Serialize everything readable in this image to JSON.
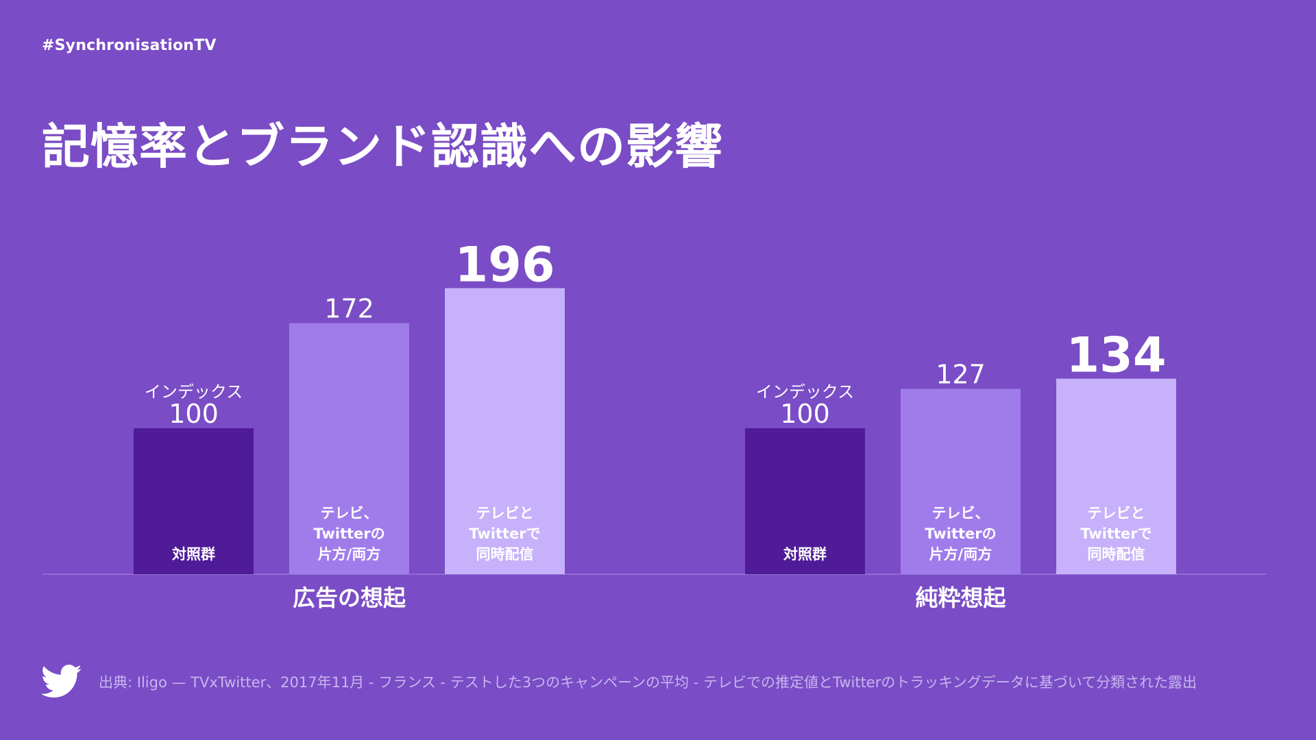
{
  "hashtag": "#SynchronisationTV",
  "title": "記憶率とブランド認識への影響",
  "source": "出典: Iligo — TVxTwitter、2017年11月 - フランス - テストした3つのキャンペーンの平均 - テレビでの推定値とTwitterのトラッキングデータに基づいて分類された露出",
  "colors": {
    "background": "#7a4cc5",
    "control": "#4f1b99",
    "either": "#a07ceb",
    "sync": "#c6b1fa",
    "baseline": "#9a78d8"
  },
  "chart_data": {
    "type": "bar",
    "ylim": [
      0,
      210
    ],
    "index_label": "インデックス",
    "groups": [
      {
        "name": "広告の想起",
        "bars": [
          {
            "label": "対照群",
            "value": 100,
            "color": "#4f1b99"
          },
          {
            "label": "テレビ、Twitterの片方/両方",
            "label_lines": [
              "テレビ、",
              "Twitterの",
              "片方/両方"
            ],
            "value": 172,
            "color": "#a07ceb"
          },
          {
            "label": "テレビとTwitterで同時配信",
            "label_lines": [
              "テレビと",
              "Twitterで",
              "同時配信"
            ],
            "value": 196,
            "color": "#c6b1fa",
            "emphasis": true
          }
        ]
      },
      {
        "name": "純粋想起",
        "bars": [
          {
            "label": "対照群",
            "value": 100,
            "color": "#4f1b99"
          },
          {
            "label": "テレビ、Twitterの片方/両方",
            "label_lines": [
              "テレビ、",
              "Twitterの",
              "片方/両方"
            ],
            "value": 127,
            "color": "#a07ceb"
          },
          {
            "label": "テレビとTwitterで同時配信",
            "label_lines": [
              "テレビと",
              "Twitterで",
              "同時配信"
            ],
            "value": 134,
            "color": "#c6b1fa",
            "emphasis": true
          }
        ]
      }
    ]
  }
}
